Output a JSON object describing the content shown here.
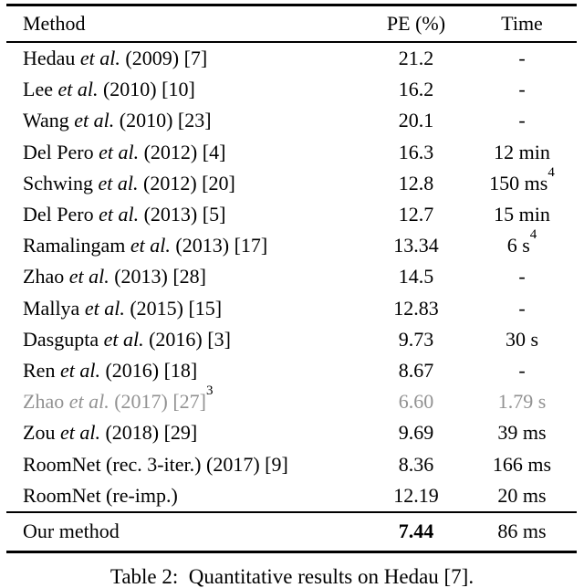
{
  "table": {
    "columns": [
      "Method",
      "PE (%)",
      "Time"
    ],
    "rows": [
      {
        "method_pre": "Hedau ",
        "method_etal": "et al.",
        "method_post": " (2009) [7]",
        "method_sup": "",
        "pe": "21.2",
        "time": "-",
        "time_sup": "",
        "muted": false
      },
      {
        "method_pre": "Lee ",
        "method_etal": "et al.",
        "method_post": " (2010) [10]",
        "method_sup": "",
        "pe": "16.2",
        "time": "-",
        "time_sup": "",
        "muted": false
      },
      {
        "method_pre": "Wang ",
        "method_etal": "et al.",
        "method_post": " (2010) [23]",
        "method_sup": "",
        "pe": "20.1",
        "time": "-",
        "time_sup": "",
        "muted": false
      },
      {
        "method_pre": "Del Pero ",
        "method_etal": "et al.",
        "method_post": " (2012) [4]",
        "method_sup": "",
        "pe": "16.3",
        "time": "12 min",
        "time_sup": "",
        "muted": false
      },
      {
        "method_pre": "Schwing ",
        "method_etal": "et al.",
        "method_post": " (2012) [20]",
        "method_sup": "",
        "pe": "12.8",
        "time": "150 ms",
        "time_sup": "4",
        "muted": false
      },
      {
        "method_pre": "Del Pero ",
        "method_etal": "et al.",
        "method_post": " (2013) [5]",
        "method_sup": "",
        "pe": "12.7",
        "time": "15 min",
        "time_sup": "",
        "muted": false
      },
      {
        "method_pre": "Ramalingam ",
        "method_etal": "et al.",
        "method_post": " (2013) [17]",
        "method_sup": "",
        "pe": "13.34",
        "time": "6 s",
        "time_sup": "4",
        "muted": false
      },
      {
        "method_pre": "Zhao ",
        "method_etal": "et al.",
        "method_post": " (2013) [28]",
        "method_sup": "",
        "pe": "14.5",
        "time": "-",
        "time_sup": "",
        "muted": false
      },
      {
        "method_pre": "Mallya ",
        "method_etal": "et al.",
        "method_post": " (2015) [15]",
        "method_sup": "",
        "pe": "12.83",
        "time": "-",
        "time_sup": "",
        "muted": false
      },
      {
        "method_pre": "Dasgupta ",
        "method_etal": "et al.",
        "method_post": " (2016) [3]",
        "method_sup": "",
        "pe": "9.73",
        "time": "30 s",
        "time_sup": "",
        "muted": false
      },
      {
        "method_pre": "Ren ",
        "method_etal": "et al.",
        "method_post": " (2016) [18]",
        "method_sup": "",
        "pe": "8.67",
        "time": "-",
        "time_sup": "",
        "muted": false
      },
      {
        "method_pre": "Zhao ",
        "method_etal": "et al.",
        "method_post": " (2017) [27]",
        "method_sup": "3",
        "pe": "6.60",
        "time": "1.79 s",
        "time_sup": "",
        "muted": true
      },
      {
        "method_pre": "Zou ",
        "method_etal": "et al.",
        "method_post": " (2018) [29]",
        "method_sup": "",
        "pe": "9.69",
        "time": "39 ms",
        "time_sup": "",
        "muted": false
      },
      {
        "method_pre": "RoomNet (rec. 3-iter.) (2017) [9]",
        "method_etal": "",
        "method_post": "",
        "method_sup": "",
        "pe": "8.36",
        "time": "166 ms",
        "time_sup": "",
        "muted": false
      },
      {
        "method_pre": "RoomNet (re-imp.)",
        "method_etal": "",
        "method_post": "",
        "method_sup": "",
        "pe": "12.19",
        "time": "20 ms",
        "time_sup": "",
        "muted": false
      }
    ],
    "summary": {
      "method": "Our method",
      "pe": "7.44",
      "time": "86 ms"
    }
  },
  "caption": "Table 2:  Quantitative results on Hedau [7]."
}
